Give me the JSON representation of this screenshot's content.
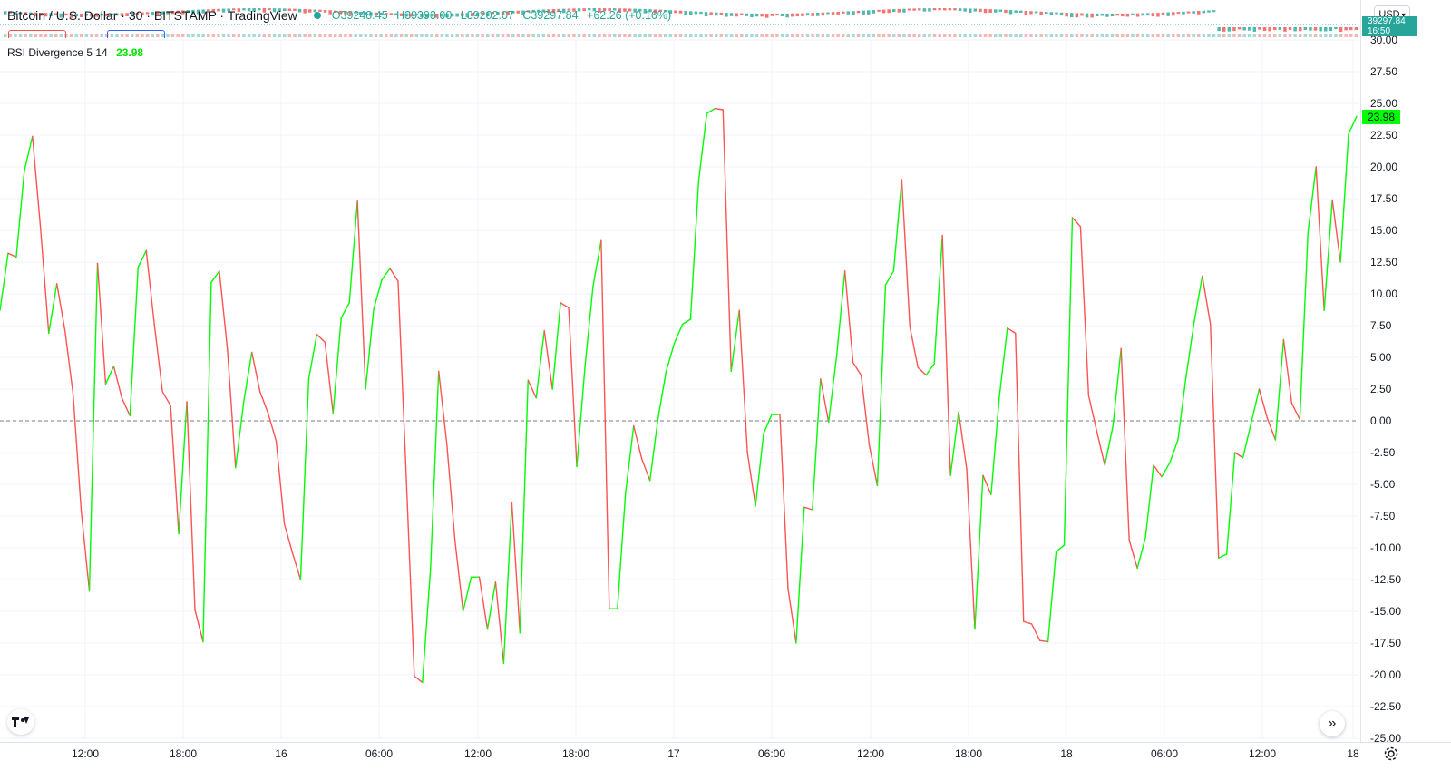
{
  "header": {
    "symbol_title": "Bitcoin / U.S. Dollar · 30 · BITSTAMP · TradingView",
    "open": "O39248.45",
    "high": "H39393.00",
    "low": "L39202.07",
    "close": "C39297.84",
    "change": "+62.26 (+0.16%)"
  },
  "indicator": {
    "name": "RSI Divergence 5 14",
    "value": "23.98"
  },
  "price_axis": {
    "currency": "USD",
    "price_tag": "39297.84",
    "price_tag_sub": "16:50",
    "value_tag": "23.98"
  },
  "colors": {
    "up": "#00ff00",
    "down": "#ff5252",
    "header_green": "#26a69a"
  },
  "chart_data": {
    "type": "line",
    "title": "RSI Divergence 5 14",
    "ylim": [
      -25,
      30
    ],
    "y_ticks": [
      "30.00",
      "27.50",
      "25.00",
      "22.50",
      "20.00",
      "17.50",
      "15.00",
      "12.50",
      "10.00",
      "7.50",
      "5.00",
      "2.50",
      "0.00",
      "-2.50",
      "-5.00",
      "-7.50",
      "-10.00",
      "-12.50",
      "-15.00",
      "-17.50",
      "-20.00",
      "-22.50",
      "-25.00"
    ],
    "x_tick_labels": [
      "12:00",
      "18:00",
      "16",
      "06:00",
      "12:00",
      "18:00",
      "17",
      "06:00",
      "12:00",
      "18:00",
      "18",
      "06:00",
      "12:00",
      "18"
    ],
    "zero_line": 0,
    "grid": true,
    "series": [
      {
        "coloring": "green when rising, red when falling",
        "values": [
          8.7,
          13.2,
          12.9,
          19.7,
          22.4,
          15.1,
          6.9,
          10.8,
          7.1,
          2.1,
          -7.1,
          -13.4,
          12.4,
          2.9,
          4.3,
          1.8,
          0.4,
          12.1,
          13.4,
          7.6,
          2.3,
          1.2,
          -8.9,
          1.5,
          -14.9,
          -17.4,
          10.9,
          11.8,
          5.6,
          -3.7,
          1.5,
          5.4,
          2.3,
          0.6,
          -1.6,
          -8.1,
          -10.4,
          -12.5,
          3.3,
          6.8,
          6.2,
          0.6,
          8.1,
          9.3,
          17.3,
          2.5,
          8.8,
          11.1,
          12.0,
          11.0,
          -4.3,
          -20.1,
          -20.6,
          -11.6,
          3.9,
          -1.8,
          -9.4,
          -15.0,
          -12.3,
          -12.3,
          -16.4,
          -12.7,
          -19.1,
          -6.4,
          -16.7,
          3.2,
          1.8,
          7.1,
          2.5,
          9.3,
          8.9,
          -3.6,
          4.2,
          10.6,
          14.2,
          -14.8,
          -14.8,
          -5.7,
          -0.4,
          -3.0,
          -4.7,
          0.2,
          3.9,
          6.1,
          7.6,
          8.0,
          18.9,
          24.2,
          24.6,
          24.5,
          3.9,
          8.7,
          -2.5,
          -6.7,
          -1.0,
          0.5,
          0.5,
          -13.2,
          -17.5,
          -6.8,
          -7.0,
          3.3,
          -0.1,
          5.2,
          11.8,
          4.6,
          3.6,
          -1.9,
          -5.1,
          10.7,
          11.8,
          19.0,
          7.4,
          4.2,
          3.6,
          4.5,
          14.6,
          -4.3,
          0.7,
          -3.8,
          -16.4,
          -4.3,
          -5.8,
          1.8,
          7.3,
          6.9,
          -15.8,
          -16.0,
          -17.3,
          -17.4,
          -10.3,
          -9.8,
          16.0,
          15.3,
          2.0,
          -0.8,
          -3.5,
          -0.4,
          5.7,
          -9.4,
          -11.6,
          -9.2,
          -3.5,
          -4.4,
          -3.3,
          -1.5,
          3.5,
          7.8,
          11.4,
          7.6,
          -10.8,
          -10.5,
          -2.5,
          -2.9,
          -0.2,
          2.5,
          0.2,
          -1.5,
          6.4,
          1.4,
          0.1,
          14.8,
          20.0,
          8.7,
          17.4,
          12.5,
          22.6,
          23.98
        ]
      }
    ]
  }
}
